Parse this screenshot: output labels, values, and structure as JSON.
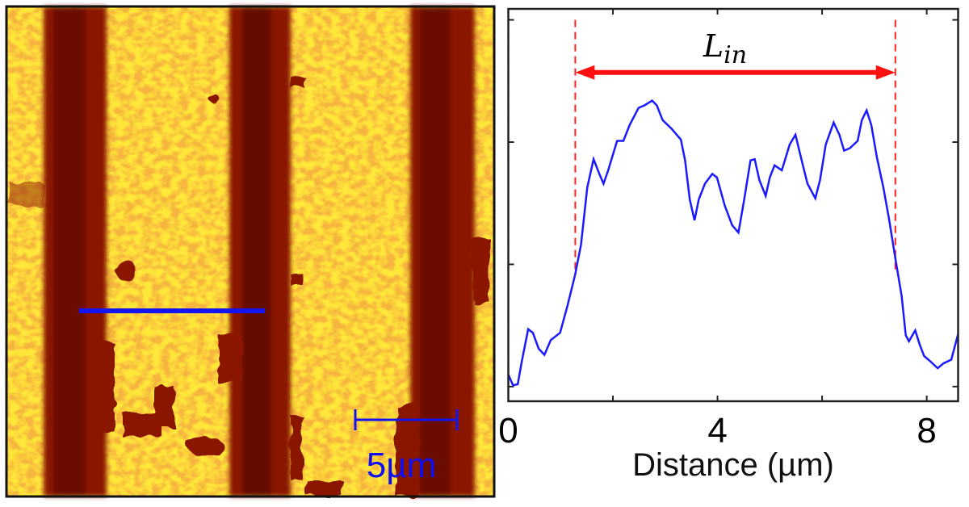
{
  "afm_image": {
    "scale_bar_label": "5µm",
    "colors": {
      "bright": "#ffe83a",
      "mid": "#e8780e",
      "dark": "#7a0c02",
      "line": "#1414ee"
    }
  },
  "chart_data": {
    "type": "line",
    "title": "",
    "xlabel": "Distance (µm)",
    "ylabel": "",
    "xlim": [
      0,
      8.6
    ],
    "ylim": [
      -0.12,
      3.09
    ],
    "x_ticks": [
      0,
      4,
      8
    ],
    "x_tick_labels": [
      "0",
      "4",
      "8"
    ],
    "x_minor_ticks": [
      2,
      6
    ],
    "y_ticks": [
      0,
      1,
      2,
      3
    ],
    "y_tick_labels": [],
    "grid": false,
    "series": [
      {
        "color": "#1a1aff",
        "x": [
          0.0,
          0.09,
          0.18,
          0.26,
          0.38,
          0.47,
          0.58,
          0.69,
          0.81,
          0.99,
          1.13,
          1.28,
          1.39,
          1.51,
          1.63,
          1.74,
          1.82,
          1.91,
          2.08,
          2.2,
          2.32,
          2.49,
          2.6,
          2.75,
          2.84,
          2.95,
          3.12,
          3.3,
          3.38,
          3.47,
          3.56,
          3.64,
          3.76,
          3.9,
          3.99,
          4.14,
          4.28,
          4.4,
          4.51,
          4.63,
          4.71,
          4.8,
          4.92,
          5.0,
          5.09,
          5.23,
          5.38,
          5.49,
          5.61,
          5.72,
          5.87,
          5.96,
          6.07,
          6.22,
          6.33,
          6.42,
          6.53,
          6.68,
          6.76,
          6.85,
          6.94,
          7.05,
          7.17,
          7.28,
          7.4,
          7.52,
          7.6,
          7.66,
          7.78,
          7.86,
          7.95,
          8.06,
          8.21,
          8.32,
          8.47,
          8.6
        ],
        "y": [
          0.1,
          0.01,
          0.02,
          0.21,
          0.47,
          0.44,
          0.31,
          0.26,
          0.38,
          0.44,
          0.66,
          0.92,
          1.16,
          1.63,
          1.86,
          1.74,
          1.66,
          1.77,
          2.01,
          2.01,
          2.14,
          2.28,
          2.3,
          2.34,
          2.3,
          2.18,
          2.11,
          2.02,
          1.85,
          1.53,
          1.36,
          1.53,
          1.66,
          1.74,
          1.71,
          1.48,
          1.32,
          1.26,
          1.53,
          1.85,
          1.86,
          1.69,
          1.56,
          1.71,
          1.81,
          1.77,
          1.98,
          2.06,
          1.85,
          1.66,
          1.54,
          1.69,
          1.98,
          2.16,
          2.06,
          1.93,
          1.95,
          2.01,
          2.18,
          2.26,
          2.14,
          1.87,
          1.63,
          1.37,
          1.05,
          0.74,
          0.42,
          0.37,
          0.46,
          0.35,
          0.25,
          0.21,
          0.15,
          0.19,
          0.22,
          0.43
        ]
      }
    ],
    "annotations": {
      "dashed_lines_x": [
        1.28,
        7.4
      ],
      "dashed_color": "#ff2020",
      "arrow": {
        "x_start": 1.28,
        "x_end": 7.4,
        "y": 2.57,
        "color": "#ff1010"
      },
      "label_main": "L",
      "label_sub": "in"
    }
  }
}
